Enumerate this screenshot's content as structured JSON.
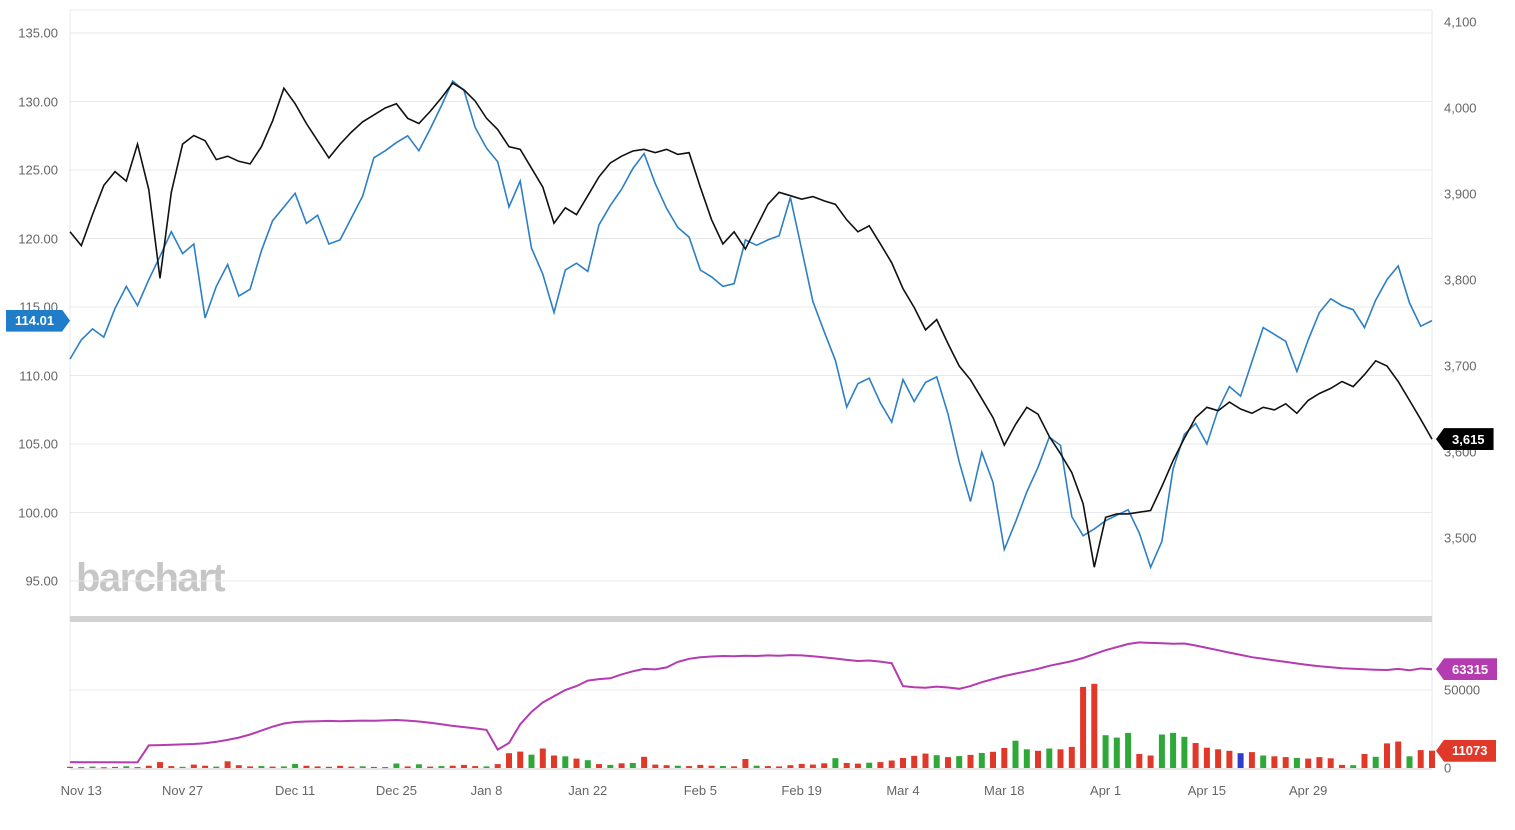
{
  "app": {
    "watermark": "barchart"
  },
  "colors": {
    "blue_line": "#2c7fc6",
    "black_line": "#111111",
    "purple_line": "#b43bb0",
    "volume_up": "#2fa83a",
    "volume_down": "#e0392a",
    "volume_special": "#2c3ccc",
    "badge_blue": "#1f7dca",
    "badge_black": "#000000",
    "badge_purple": "#b43bb0",
    "badge_red": "#e0392a",
    "grid": "#e8e8e8",
    "axis_text": "#666666",
    "separator": "#d2d2d2",
    "watermark": "#c6c6c6"
  },
  "chart_data": [
    {
      "type": "line",
      "pane": "price",
      "title": "",
      "x_labels": [
        "Nov 13",
        "Nov 27",
        "Dec 11",
        "Dec 25",
        "Jan 8",
        "Jan 22",
        "Feb 5",
        "Feb 19",
        "Mar 4",
        "Mar 18",
        "Apr 1",
        "Apr 15",
        "Apr 29"
      ],
      "x_label_indices": [
        1,
        10,
        20,
        29,
        37,
        46,
        56,
        65,
        74,
        83,
        92,
        101,
        110
      ],
      "left_axis": {
        "tick_labels": [
          "135.00",
          "130.00",
          "125.00",
          "120.00",
          "115.00",
          "110.00",
          "105.00",
          "100.00",
          "95.00"
        ],
        "tick_values": [
          135,
          130,
          125,
          120,
          115,
          110,
          105,
          100,
          95
        ]
      },
      "right_axis": {
        "tick_labels": [
          "4,100",
          "4,000",
          "3,900",
          "3,800",
          "3,700",
          "3,600",
          "3,500"
        ],
        "tick_values": [
          4100,
          4000,
          3900,
          3800,
          3700,
          3600,
          3500
        ]
      },
      "series": [
        {
          "name": "price-line-left-axis",
          "axis": "left",
          "color_key": "blue_line",
          "last_value_label": "114.01",
          "values": [
            111.2,
            112.6,
            113.4,
            112.8,
            114.9,
            116.5,
            115.1,
            117.0,
            118.7,
            120.5,
            118.9,
            119.6,
            114.2,
            116.5,
            118.1,
            115.8,
            116.3,
            119.1,
            121.3,
            122.3,
            123.3,
            121.1,
            121.7,
            119.6,
            119.9,
            121.5,
            123.1,
            125.9,
            126.4,
            127.0,
            127.5,
            126.4,
            128.0,
            129.7,
            131.5,
            130.8,
            128.1,
            126.6,
            125.6,
            122.3,
            124.2,
            119.3,
            117.4,
            114.6,
            117.7,
            118.2,
            117.6,
            121.0,
            122.4,
            123.6,
            125.1,
            126.2,
            124.0,
            122.2,
            120.8,
            120.1,
            117.7,
            117.2,
            116.5,
            116.7,
            119.9,
            119.5,
            119.9,
            120.2,
            123.0,
            119.2,
            115.4,
            113.2,
            111.1,
            107.7,
            109.4,
            109.8,
            108.0,
            106.6,
            109.7,
            108.1,
            109.5,
            109.9,
            107.2,
            103.7,
            100.8,
            104.4,
            102.2,
            97.3,
            99.3,
            101.5,
            103.3,
            105.5,
            104.9,
            99.7,
            98.3,
            98.8,
            99.4,
            99.8,
            100.2,
            98.5,
            96.0,
            97.9,
            103.2,
            105.7,
            106.5,
            105.0,
            107.5,
            109.2,
            108.5,
            111.0,
            113.5,
            113.0,
            112.5,
            110.3,
            112.6,
            114.6,
            115.6,
            115.1,
            114.8,
            113.5,
            115.5,
            117.0,
            118.0,
            115.3,
            113.6,
            114.01
          ]
        },
        {
          "name": "index-line-right-axis",
          "axis": "right",
          "color_key": "black_line",
          "last_value_label": "3,615",
          "values": [
            3856,
            3840,
            3876,
            3910,
            3926,
            3915,
            3958,
            3905,
            3802,
            3902,
            3958,
            3968,
            3962,
            3940,
            3944,
            3938,
            3935,
            3955,
            3985,
            4023,
            4005,
            3982,
            3962,
            3942,
            3958,
            3972,
            3984,
            3992,
            4000,
            4005,
            3988,
            3982,
            3996,
            4012,
            4029,
            4021,
            4008,
            3988,
            3975,
            3955,
            3952,
            3930,
            3908,
            3866,
            3884,
            3876,
            3898,
            3920,
            3936,
            3944,
            3950,
            3952,
            3948,
            3952,
            3946,
            3948,
            3908,
            3870,
            3842,
            3856,
            3836,
            3862,
            3888,
            3902,
            3898,
            3894,
            3897,
            3892,
            3888,
            3870,
            3856,
            3863,
            3842,
            3820,
            3790,
            3768,
            3742,
            3754,
            3726,
            3700,
            3684,
            3662,
            3640,
            3608,
            3632,
            3652,
            3644,
            3618,
            3598,
            3576,
            3540,
            3466,
            3524,
            3528,
            3528,
            3530,
            3532,
            3560,
            3590,
            3616,
            3640,
            3652,
            3648,
            3658,
            3650,
            3645,
            3652,
            3649,
            3656,
            3645,
            3660,
            3668,
            3674,
            3682,
            3676,
            3690,
            3706,
            3700,
            3682,
            3660,
            3638,
            3615
          ]
        }
      ]
    },
    {
      "type": "bar",
      "pane": "volume",
      "title": "",
      "right_axis": {
        "tick_labels": [
          "50000",
          "0"
        ],
        "tick_values": [
          50000,
          0
        ]
      },
      "series": [
        {
          "name": "open-interest-line",
          "type": "line",
          "color_key": "purple_line",
          "last_value_label": "63315",
          "values": [
            3800,
            3700,
            3650,
            3700,
            3650,
            3600,
            3650,
            14500,
            14700,
            14900,
            15100,
            15400,
            15900,
            16800,
            18000,
            19500,
            21500,
            24000,
            26500,
            28500,
            29500,
            29800,
            30000,
            30200,
            30000,
            30200,
            30400,
            30300,
            30500,
            30800,
            30400,
            29800,
            29000,
            28000,
            27000,
            26200,
            25400,
            24400,
            11800,
            16000,
            28000,
            36000,
            42000,
            46000,
            50000,
            52500,
            56000,
            57000,
            57500,
            60000,
            62000,
            63500,
            63200,
            64500,
            68000,
            70000,
            71000,
            71500,
            71800,
            71600,
            72000,
            71800,
            72200,
            72000,
            72400,
            72200,
            71600,
            70900,
            70200,
            69300,
            68600,
            68900,
            68200,
            67200,
            52500,
            51800,
            51500,
            52200,
            51600,
            50800,
            52500,
            55000,
            57000,
            59000,
            60500,
            62000,
            63500,
            65500,
            67000,
            68500,
            70500,
            73000,
            75500,
            77500,
            79500,
            80500,
            80200,
            80000,
            79600,
            79800,
            78500,
            77000,
            75500,
            74000,
            72500,
            71000,
            70000,
            69000,
            68000,
            67000,
            66000,
            65200,
            64600,
            64000,
            63600,
            63300,
            63000,
            62800,
            63500,
            62600,
            63800,
            63315
          ]
        },
        {
          "name": "volume-bars",
          "type": "bars",
          "last_value_label": "11073",
          "bar_colors": "rrgrrgrrrrgrrgrrrgrggrrrrrgrrgrgrgrrrgrrrgrrgrgrgrgrrrgrrrgrrgrrrrrrgrrgrrrrrgrgrgrrggrgrrrrgggrrgggrrrrbrgrrgrrrrgrgrrgrr",
          "values": [
            800,
            600,
            900,
            500,
            700,
            1100,
            600,
            1500,
            3800,
            1200,
            800,
            2200,
            1500,
            900,
            4300,
            1800,
            1000,
            1200,
            900,
            1000,
            2600,
            1500,
            1000,
            800,
            1400,
            900,
            1100,
            700,
            600,
            2900,
            1000,
            2400,
            900,
            1200,
            1500,
            2000,
            1200,
            1000,
            2500,
            9500,
            10500,
            8500,
            12500,
            8000,
            7500,
            6000,
            5000,
            2500,
            2000,
            3000,
            3200,
            7200,
            2200,
            1800,
            1500,
            1200,
            2000,
            1500,
            1300,
            1100,
            5800,
            1500,
            1200,
            1000,
            1800,
            2600,
            2200,
            3000,
            6300,
            3200,
            2800,
            3400,
            3800,
            4800,
            6400,
            7800,
            9200,
            8200,
            7000,
            7600,
            8400,
            9600,
            10400,
            12800,
            17500,
            12000,
            11000,
            12500,
            12000,
            13500,
            52000,
            54000,
            21000,
            19500,
            22500,
            9000,
            8000,
            21500,
            22500,
            20000,
            16000,
            13000,
            12000,
            11000,
            9500,
            10200,
            8000,
            7500,
            7000,
            6500,
            6000,
            7000,
            6200,
            2000,
            1800,
            9000,
            7200,
            15800,
            17000,
            7500,
            11500,
            11073
          ]
        }
      ]
    }
  ]
}
